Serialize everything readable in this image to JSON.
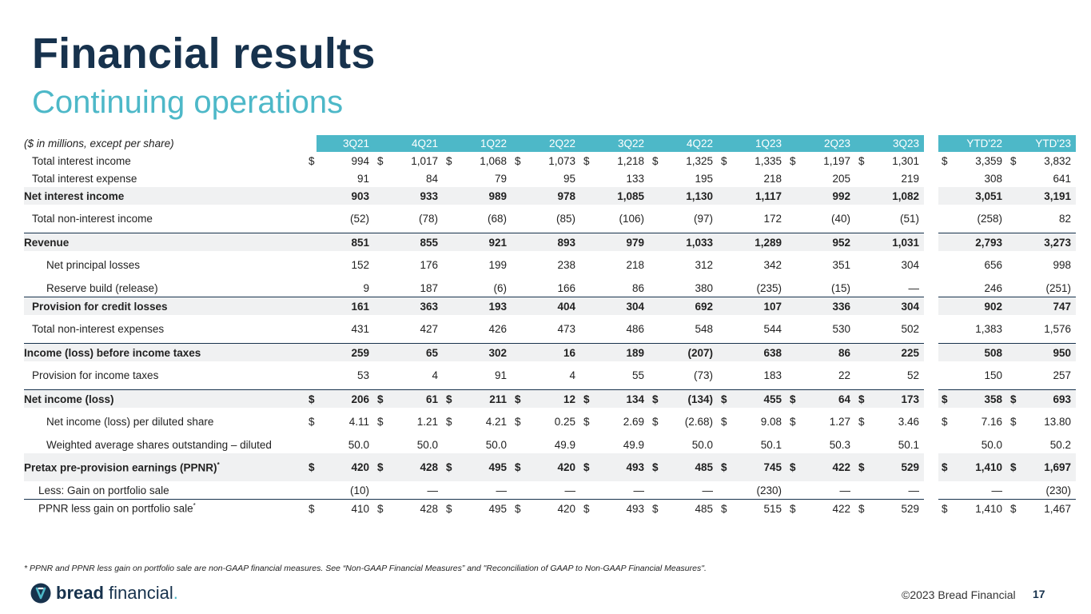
{
  "title": "Financial results",
  "subtitle": "Continuing operations",
  "table": {
    "unit_label": "($ in millions, except per share)",
    "columns": [
      "3Q21",
      "4Q21",
      "1Q22",
      "2Q22",
      "3Q22",
      "4Q22",
      "1Q23",
      "2Q23",
      "3Q23"
    ],
    "ytd_columns": [
      "YTD'22",
      "YTD'23"
    ],
    "rows": [
      {
        "label": "Total interest income",
        "dollar": true,
        "values": [
          "994",
          "1,017",
          "1,068",
          "1,073",
          "1,218",
          "1,325",
          "1,335",
          "1,197",
          "1,301"
        ],
        "ytd": [
          "3,359",
          "3,832"
        ]
      },
      {
        "label": "Total interest expense",
        "values": [
          "91",
          "84",
          "79",
          "95",
          "133",
          "195",
          "218",
          "205",
          "219"
        ],
        "ytd": [
          "308",
          "641"
        ]
      },
      {
        "label": "Net interest income",
        "values": [
          "903",
          "933",
          "989",
          "978",
          "1,085",
          "1,130",
          "1,117",
          "992",
          "1,082"
        ],
        "ytd": [
          "3,051",
          "3,191"
        ]
      },
      {
        "label": "Total non-interest income",
        "values": [
          "(52)",
          "(78)",
          "(68)",
          "(85)",
          "(106)",
          "(97)",
          "172",
          "(40)",
          "(51)"
        ],
        "ytd": [
          "(258)",
          "82"
        ]
      },
      {
        "label": "Revenue",
        "values": [
          "851",
          "855",
          "921",
          "893",
          "979",
          "1,033",
          "1,289",
          "952",
          "1,031"
        ],
        "ytd": [
          "2,793",
          "3,273"
        ]
      },
      {
        "label": "Net principal losses",
        "values": [
          "152",
          "176",
          "199",
          "238",
          "218",
          "312",
          "342",
          "351",
          "304"
        ],
        "ytd": [
          "656",
          "998"
        ]
      },
      {
        "label": "Reserve build (release)",
        "values": [
          "9",
          "187",
          "(6)",
          "166",
          "86",
          "380",
          "(235)",
          "(15)",
          "—"
        ],
        "ytd": [
          "246",
          "(251)"
        ]
      },
      {
        "label": "Provision for credit losses",
        "values": [
          "161",
          "363",
          "193",
          "404",
          "304",
          "692",
          "107",
          "336",
          "304"
        ],
        "ytd": [
          "902",
          "747"
        ]
      },
      {
        "label": "Total non-interest expenses",
        "values": [
          "431",
          "427",
          "426",
          "473",
          "486",
          "548",
          "544",
          "530",
          "502"
        ],
        "ytd": [
          "1,383",
          "1,576"
        ]
      },
      {
        "label": "Income (loss) before income taxes",
        "values": [
          "259",
          "65",
          "302",
          "16",
          "189",
          "(207)",
          "638",
          "86",
          "225"
        ],
        "ytd": [
          "508",
          "950"
        ]
      },
      {
        "label": "Provision for income taxes",
        "values": [
          "53",
          "4",
          "91",
          "4",
          "55",
          "(73)",
          "183",
          "22",
          "52"
        ],
        "ytd": [
          "150",
          "257"
        ]
      },
      {
        "label": "Net income (loss)",
        "dollar": true,
        "values": [
          "206",
          "61",
          "211",
          "12",
          "134",
          "(134)",
          "455",
          "64",
          "173"
        ],
        "ytd": [
          "358",
          "693"
        ]
      },
      {
        "label": "Net income (loss) per diluted share",
        "dollar": true,
        "values": [
          "4.11",
          "1.21",
          "4.21",
          "0.25",
          "2.69",
          "(2.68)",
          "9.08",
          "1.27",
          "3.46"
        ],
        "ytd": [
          "7.16",
          "13.80"
        ]
      },
      {
        "label": "Weighted average shares outstanding – diluted",
        "values": [
          "50.0",
          "50.0",
          "50.0",
          "49.9",
          "49.9",
          "50.0",
          "50.1",
          "50.3",
          "50.1"
        ],
        "ytd": [
          "50.0",
          "50.2"
        ]
      },
      {
        "label": "Pretax pre-provision earnings (PPNR)",
        "footnote_mark": "*",
        "dollar": true,
        "values": [
          "420",
          "428",
          "495",
          "420",
          "493",
          "485",
          "745",
          "422",
          "529"
        ],
        "ytd": [
          "1,410",
          "1,697"
        ]
      },
      {
        "label": "Less: Gain on portfolio sale",
        "values": [
          "(10)",
          "—",
          "—",
          "—",
          "—",
          "—",
          "(230)",
          "—",
          "—"
        ],
        "ytd": [
          "—",
          "(230)"
        ]
      },
      {
        "label": "PPNR less gain on portfolio sale",
        "footnote_mark": "*",
        "dollar": true,
        "values": [
          "410",
          "428",
          "495",
          "420",
          "493",
          "485",
          "515",
          "422",
          "529"
        ],
        "ytd": [
          "1,410",
          "1,467"
        ]
      }
    ]
  },
  "footnote": "* PPNR and PPNR less gain on portfolio sale are non-GAAP financial measures. See “Non-GAAP Financial Measures” and \"Reconciliation of GAAP to Non-GAAP Financial Measures\".",
  "logo": {
    "bold": "bread",
    "regular": "financial",
    "mark": ".",
    "icon": "bread-financial-logo-icon"
  },
  "copyright": "©2023 Bread Financial",
  "page_number": "17",
  "colors": {
    "navy": "#17324d",
    "teal": "#4db8c8",
    "row_highlight": "#f0f1f2"
  }
}
